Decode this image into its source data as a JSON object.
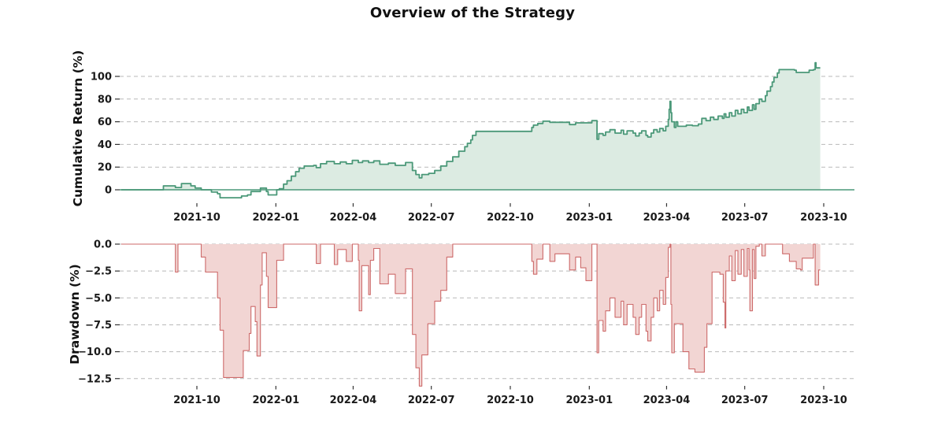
{
  "title": "Overview of the Strategy",
  "colors": {
    "return_line": "#4a9878",
    "return_fill": "#dcebe2",
    "zero_line": "#4a9878",
    "drawdown_line": "#cd6a6a",
    "drawdown_fill": "#f2d5d3",
    "grid": "#b9b9b9",
    "tick_text": "#1a1a1a"
  },
  "chart_data": [
    {
      "type": "area",
      "panel": "cumulative_return",
      "title": "Overview of the Strategy",
      "ylabel": "Cumulative Return (%)",
      "ylim": [
        -10,
        118
      ],
      "grid": true,
      "step_style": "post",
      "zero_reference_line": true,
      "ytick_values": [
        0,
        20,
        40,
        60,
        80,
        100
      ],
      "ytick_labels": [
        "0",
        "20",
        "40",
        "60",
        "80",
        "100"
      ],
      "xtick_dates": [
        "2021-10-01",
        "2022-01-01",
        "2022-04-01",
        "2022-07-01",
        "2022-10-01",
        "2023-01-01",
        "2023-04-01",
        "2023-07-01",
        "2023-10-01"
      ],
      "xtick_labels": [
        "2021-10",
        "2022-01",
        "2022-04",
        "2022-07",
        "2022-10",
        "2023-01",
        "2023-04",
        "2023-07",
        "2023-10"
      ],
      "series": [
        [
          "2021-07-05",
          0
        ],
        [
          "2021-08-20",
          0
        ],
        [
          "2021-08-23",
          3.5
        ],
        [
          "2021-09-06",
          2
        ],
        [
          "2021-09-13",
          5.5
        ],
        [
          "2021-09-24",
          3.5
        ],
        [
          "2021-09-29",
          1.5
        ],
        [
          "2021-10-06",
          0
        ],
        [
          "2021-10-18",
          -2
        ],
        [
          "2021-10-25",
          -3.5
        ],
        [
          "2021-10-28",
          -7
        ],
        [
          "2021-11-22",
          -5.5
        ],
        [
          "2021-11-29",
          -4.5
        ],
        [
          "2021-12-03",
          -1.5
        ],
        [
          "2021-12-14",
          1.5
        ],
        [
          "2021-12-21",
          -1.5
        ],
        [
          "2021-12-23",
          -4.5
        ],
        [
          "2022-01-02",
          0
        ],
        [
          "2022-01-05",
          1
        ],
        [
          "2022-01-10",
          5
        ],
        [
          "2022-01-14",
          8
        ],
        [
          "2022-01-19",
          12
        ],
        [
          "2022-01-24",
          16
        ],
        [
          "2022-01-28",
          19
        ],
        [
          "2022-02-03",
          21
        ],
        [
          "2022-02-14",
          21.5
        ],
        [
          "2022-02-17",
          19.5
        ],
        [
          "2022-02-22",
          23
        ],
        [
          "2022-03-01",
          25
        ],
        [
          "2022-03-10",
          23
        ],
        [
          "2022-03-17",
          24.5
        ],
        [
          "2022-03-24",
          23
        ],
        [
          "2022-03-31",
          26
        ],
        [
          "2022-04-07",
          24
        ],
        [
          "2022-04-12",
          25.5
        ],
        [
          "2022-04-19",
          24
        ],
        [
          "2022-04-25",
          25.5
        ],
        [
          "2022-05-02",
          22.5
        ],
        [
          "2022-05-12",
          23.5
        ],
        [
          "2022-05-20",
          21.5
        ],
        [
          "2022-06-01",
          24
        ],
        [
          "2022-06-09",
          17
        ],
        [
          "2022-06-13",
          13.5
        ],
        [
          "2022-06-17",
          10.5
        ],
        [
          "2022-06-20",
          13.5
        ],
        [
          "2022-06-28",
          14.5
        ],
        [
          "2022-07-05",
          17
        ],
        [
          "2022-07-12",
          21
        ],
        [
          "2022-07-19",
          25
        ],
        [
          "2022-07-26",
          29
        ],
        [
          "2022-08-02",
          34
        ],
        [
          "2022-08-09",
          38
        ],
        [
          "2022-08-12",
          41
        ],
        [
          "2022-08-16",
          44
        ],
        [
          "2022-08-18",
          48
        ],
        [
          "2022-08-22",
          51.5
        ],
        [
          "2022-10-26",
          55
        ],
        [
          "2022-10-28",
          57
        ],
        [
          "2022-11-02",
          58.5
        ],
        [
          "2022-11-08",
          60.5
        ],
        [
          "2022-11-16",
          59.5
        ],
        [
          "2022-12-09",
          57.5
        ],
        [
          "2022-12-16",
          59
        ],
        [
          "2023-01-04",
          61
        ],
        [
          "2023-01-10",
          44.5
        ],
        [
          "2023-01-12",
          49.5
        ],
        [
          "2023-01-17",
          48
        ],
        [
          "2023-01-20",
          51
        ],
        [
          "2023-01-25",
          53
        ],
        [
          "2023-01-31",
          50
        ],
        [
          "2023-02-07",
          52.5
        ],
        [
          "2023-02-10",
          49
        ],
        [
          "2023-02-14",
          52
        ],
        [
          "2023-02-21",
          50
        ],
        [
          "2023-02-24",
          47.5
        ],
        [
          "2023-02-28",
          50
        ],
        [
          "2023-03-03",
          52
        ],
        [
          "2023-03-08",
          48
        ],
        [
          "2023-03-10",
          46.5
        ],
        [
          "2023-03-14",
          50
        ],
        [
          "2023-03-17",
          53
        ],
        [
          "2023-03-21",
          51
        ],
        [
          "2023-03-24",
          54
        ],
        [
          "2023-03-28",
          52
        ],
        [
          "2023-03-31",
          56
        ],
        [
          "2023-04-03",
          62
        ],
        [
          "2023-04-04",
          71
        ],
        [
          "2023-04-05",
          78
        ],
        [
          "2023-04-06",
          68
        ],
        [
          "2023-04-07",
          60
        ],
        [
          "2023-04-10",
          55
        ],
        [
          "2023-04-12",
          60
        ],
        [
          "2023-04-14",
          56
        ],
        [
          "2023-04-24",
          57
        ],
        [
          "2023-05-01",
          56.5
        ],
        [
          "2023-05-08",
          58
        ],
        [
          "2023-05-12",
          63
        ],
        [
          "2023-05-17",
          61
        ],
        [
          "2023-05-22",
          64
        ],
        [
          "2023-05-26",
          62
        ],
        [
          "2023-05-31",
          65
        ],
        [
          "2023-06-05",
          63
        ],
        [
          "2023-06-07",
          67
        ],
        [
          "2023-06-09",
          64
        ],
        [
          "2023-06-13",
          68
        ],
        [
          "2023-06-16",
          65
        ],
        [
          "2023-06-20",
          70
        ],
        [
          "2023-06-23",
          67
        ],
        [
          "2023-06-27",
          71
        ],
        [
          "2023-06-30",
          68
        ],
        [
          "2023-07-04",
          73
        ],
        [
          "2023-07-06",
          70
        ],
        [
          "2023-07-10",
          75
        ],
        [
          "2023-07-12",
          71
        ],
        [
          "2023-07-14",
          76
        ],
        [
          "2023-07-18",
          80
        ],
        [
          "2023-07-21",
          78
        ],
        [
          "2023-07-25",
          83
        ],
        [
          "2023-07-27",
          87
        ],
        [
          "2023-07-31",
          91
        ],
        [
          "2023-08-02",
          95
        ],
        [
          "2023-08-04",
          99
        ],
        [
          "2023-08-08",
          103
        ],
        [
          "2023-08-10",
          106
        ],
        [
          "2023-08-28",
          105.5
        ],
        [
          "2023-08-30",
          103.5
        ],
        [
          "2023-09-14",
          105.5
        ],
        [
          "2023-09-19",
          106
        ],
        [
          "2023-09-21",
          112
        ],
        [
          "2023-09-22",
          107.5
        ],
        [
          "2023-09-27",
          107.5
        ]
      ]
    },
    {
      "type": "area",
      "panel": "drawdown",
      "ylabel": "Drawdown (%)",
      "ylim": [
        -14,
        0.6
      ],
      "grid": true,
      "step_style": "post",
      "ytick_values": [
        0,
        -2.5,
        -5,
        -7.5,
        -10,
        -12.5
      ],
      "ytick_labels": [
        "0.0",
        "−2.5",
        "−5.0",
        "−7.5",
        "−10.0",
        "−12.5"
      ],
      "xtick_dates": [
        "2021-10-01",
        "2022-01-01",
        "2022-04-01",
        "2022-07-01",
        "2022-10-01",
        "2023-01-01",
        "2023-04-01",
        "2023-07-01",
        "2023-10-01"
      ],
      "xtick_labels": [
        "2021-10",
        "2022-01",
        "2022-04",
        "2022-07",
        "2022-10",
        "2023-01",
        "2023-04",
        "2023-07",
        "2023-10"
      ],
      "series": [
        [
          "2021-07-05",
          0
        ],
        [
          "2021-09-03",
          0
        ],
        [
          "2021-09-06",
          -2.6
        ],
        [
          "2021-09-09",
          0
        ],
        [
          "2021-10-06",
          -1.2
        ],
        [
          "2021-10-11",
          -2.6
        ],
        [
          "2021-10-25",
          -5.0
        ],
        [
          "2021-10-28",
          -8.0
        ],
        [
          "2021-11-01",
          -12.4
        ],
        [
          "2021-11-24",
          -9.9
        ],
        [
          "2021-12-01",
          -8.3
        ],
        [
          "2021-12-03",
          -5.8
        ],
        [
          "2021-12-08",
          -7.2
        ],
        [
          "2021-12-10",
          -10.4
        ],
        [
          "2021-12-14",
          -3.8
        ],
        [
          "2021-12-16",
          -0.8
        ],
        [
          "2021-12-21",
          -3.0
        ],
        [
          "2021-12-23",
          -5.9
        ],
        [
          "2022-01-02",
          -1.5
        ],
        [
          "2022-01-10",
          0
        ],
        [
          "2022-02-17",
          -1.8
        ],
        [
          "2022-02-22",
          0
        ],
        [
          "2022-03-10",
          -1.9
        ],
        [
          "2022-03-14",
          -0.5
        ],
        [
          "2022-03-24",
          -1.6
        ],
        [
          "2022-03-31",
          0
        ],
        [
          "2022-04-07",
          -1.5
        ],
        [
          "2022-04-08",
          -6.2
        ],
        [
          "2022-04-11",
          -2.0
        ],
        [
          "2022-04-19",
          -4.7
        ],
        [
          "2022-04-21",
          -1.5
        ],
        [
          "2022-04-25",
          -0.4
        ],
        [
          "2022-05-02",
          -3.7
        ],
        [
          "2022-05-12",
          -2.8
        ],
        [
          "2022-05-20",
          -4.6
        ],
        [
          "2022-06-01",
          -2.3
        ],
        [
          "2022-06-09",
          -8.4
        ],
        [
          "2022-06-13",
          -11.5
        ],
        [
          "2022-06-17",
          -13.2
        ],
        [
          "2022-06-20",
          -10.3
        ],
        [
          "2022-06-27",
          -7.4
        ],
        [
          "2022-07-05",
          -5.3
        ],
        [
          "2022-07-12",
          -4.3
        ],
        [
          "2022-07-19",
          -1.2
        ],
        [
          "2022-07-26",
          0
        ],
        [
          "2022-10-26",
          -1.6
        ],
        [
          "2022-10-28",
          -2.8
        ],
        [
          "2022-11-01",
          -1.4
        ],
        [
          "2022-11-08",
          0
        ],
        [
          "2022-11-16",
          -1.6
        ],
        [
          "2022-11-22",
          -0.9
        ],
        [
          "2022-12-09",
          -2.4
        ],
        [
          "2022-12-16",
          -1.2
        ],
        [
          "2022-12-22",
          -2.2
        ],
        [
          "2022-12-28",
          -3.4
        ],
        [
          "2023-01-04",
          0
        ],
        [
          "2023-01-10",
          -10.1
        ],
        [
          "2023-01-12",
          -7.1
        ],
        [
          "2023-01-17",
          -8.1
        ],
        [
          "2023-01-20",
          -6.2
        ],
        [
          "2023-01-25",
          -5.0
        ],
        [
          "2023-01-31",
          -6.8
        ],
        [
          "2023-02-07",
          -5.3
        ],
        [
          "2023-02-10",
          -7.5
        ],
        [
          "2023-02-14",
          -5.6
        ],
        [
          "2023-02-21",
          -6.8
        ],
        [
          "2023-02-24",
          -8.4
        ],
        [
          "2023-02-28",
          -6.8
        ],
        [
          "2023-03-03",
          -5.6
        ],
        [
          "2023-03-08",
          -8.1
        ],
        [
          "2023-03-10",
          -9.0
        ],
        [
          "2023-03-14",
          -6.8
        ],
        [
          "2023-03-17",
          -5.0
        ],
        [
          "2023-03-21",
          -6.2
        ],
        [
          "2023-03-24",
          -4.3
        ],
        [
          "2023-03-28",
          -5.6
        ],
        [
          "2023-03-31",
          -3.1
        ],
        [
          "2023-04-03",
          -0.3
        ],
        [
          "2023-04-05",
          0
        ],
        [
          "2023-04-06",
          -5.6
        ],
        [
          "2023-04-07",
          -10.1
        ],
        [
          "2023-04-10",
          -7.4
        ],
        [
          "2023-04-20",
          -10.0
        ],
        [
          "2023-04-27",
          -11.6
        ],
        [
          "2023-05-04",
          -11.9
        ],
        [
          "2023-05-15",
          -9.6
        ],
        [
          "2023-05-18",
          -7.4
        ],
        [
          "2023-05-24",
          -2.6
        ],
        [
          "2023-06-02",
          -2.8
        ],
        [
          "2023-06-06",
          -5.4
        ],
        [
          "2023-06-08",
          -7.8
        ],
        [
          "2023-06-09",
          -2.5
        ],
        [
          "2023-06-13",
          -1.1
        ],
        [
          "2023-06-16",
          -3.4
        ],
        [
          "2023-06-20",
          -0.6
        ],
        [
          "2023-06-23",
          -2.8
        ],
        [
          "2023-06-27",
          -0.5
        ],
        [
          "2023-06-30",
          -3.0
        ],
        [
          "2023-07-04",
          -0.4
        ],
        [
          "2023-07-06",
          -2.4
        ],
        [
          "2023-07-07",
          -6.2
        ],
        [
          "2023-07-10",
          -0.5
        ],
        [
          "2023-07-12",
          -3.2
        ],
        [
          "2023-07-14",
          -0.2
        ],
        [
          "2023-07-18",
          0
        ],
        [
          "2023-07-21",
          -1.1
        ],
        [
          "2023-07-25",
          0
        ],
        [
          "2023-08-14",
          -0.9
        ],
        [
          "2023-08-22",
          -1.6
        ],
        [
          "2023-08-30",
          -2.3
        ],
        [
          "2023-09-04",
          -2.4
        ],
        [
          "2023-09-06",
          -1.3
        ],
        [
          "2023-09-19",
          0
        ],
        [
          "2023-09-21",
          -3.8
        ],
        [
          "2023-09-25",
          -2.4
        ],
        [
          "2023-09-27",
          -2.4
        ]
      ]
    }
  ]
}
